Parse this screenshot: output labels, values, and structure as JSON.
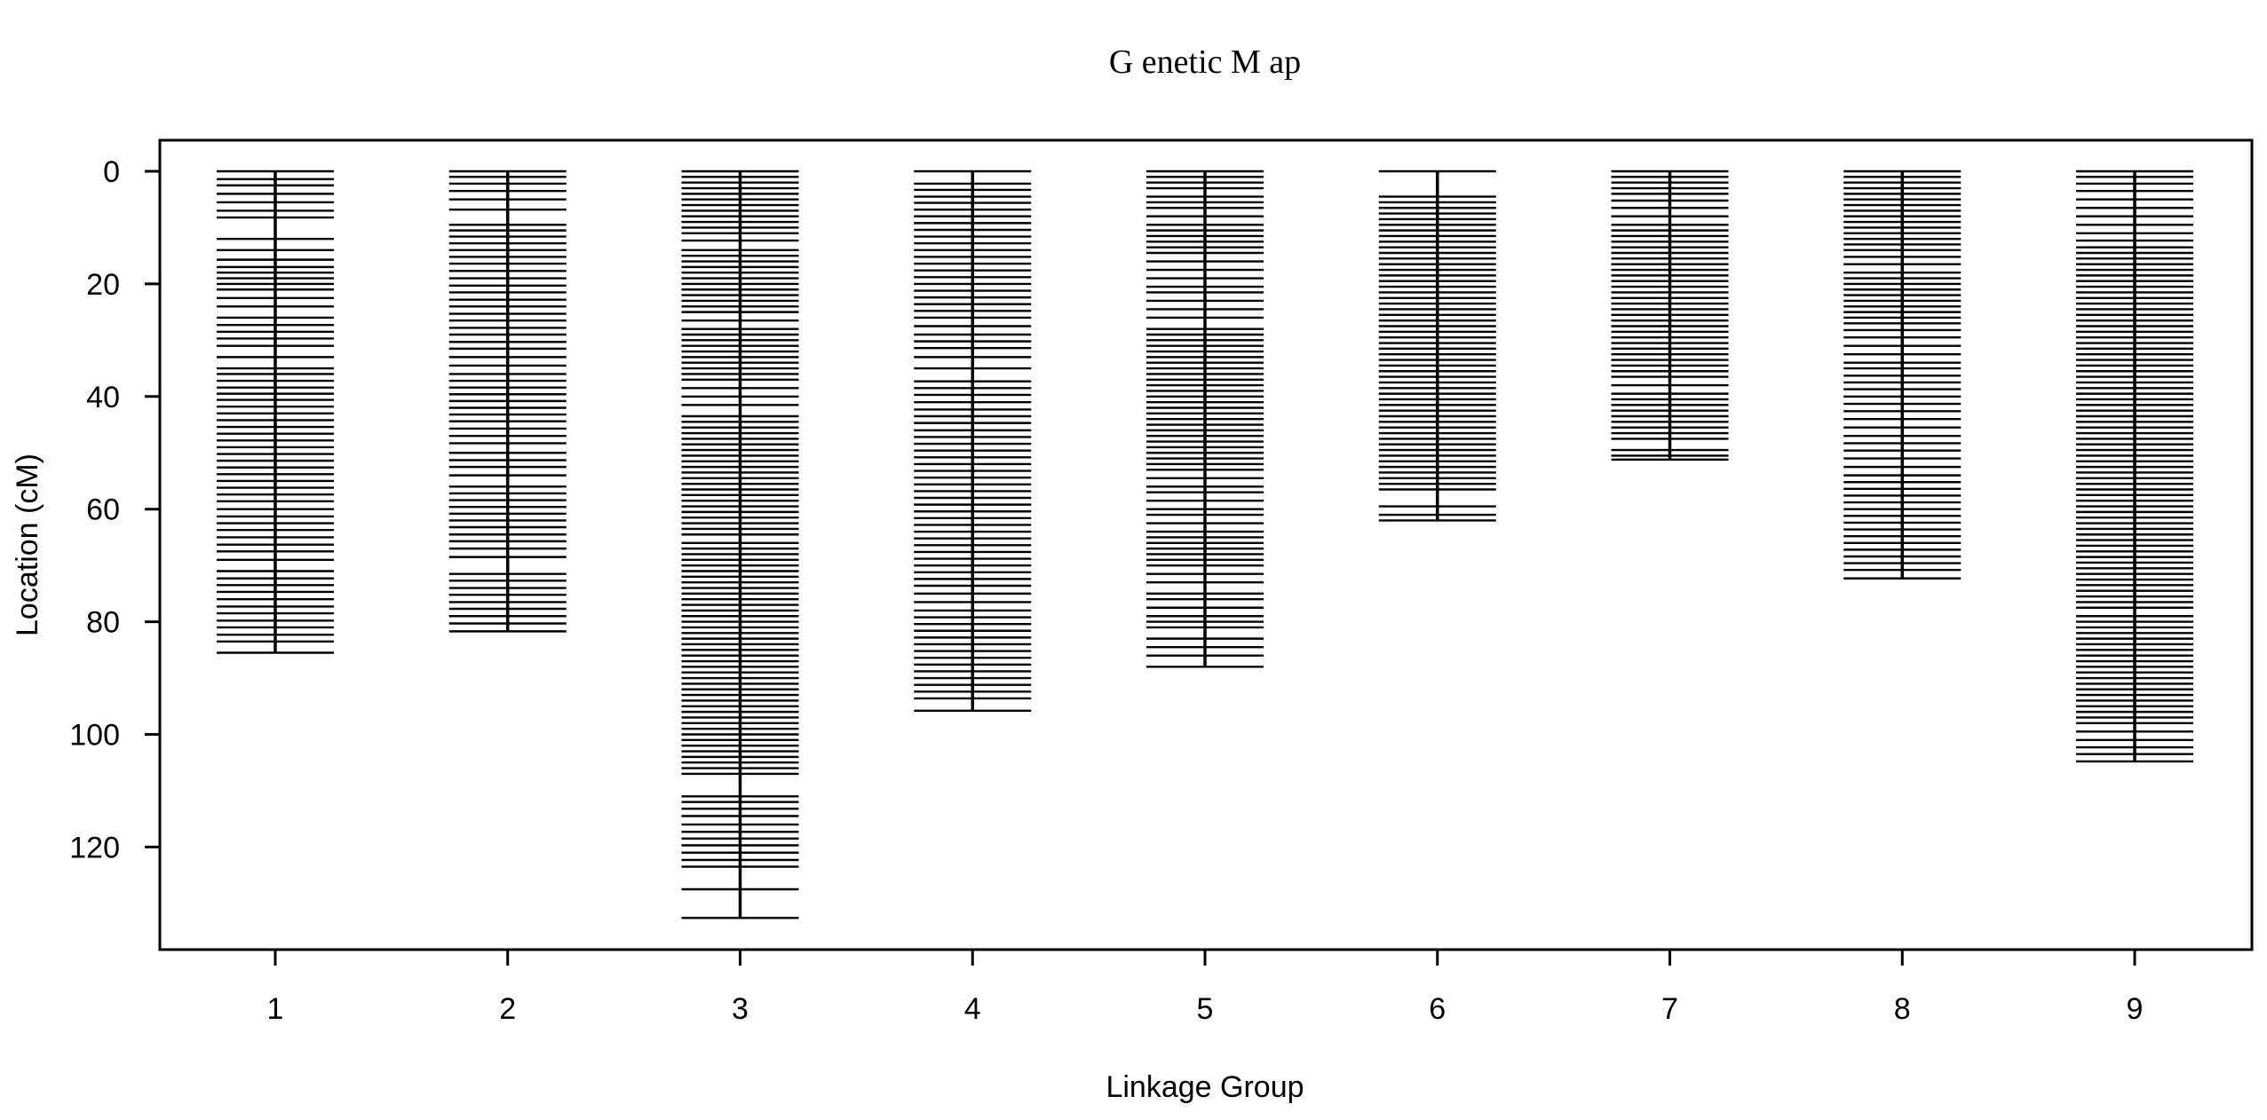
{
  "chart_data": {
    "type": "genetic-map",
    "title": "G enetic M ap",
    "xlabel": "Linkage Group",
    "ylabel": "Location (cM)",
    "ylim": [
      0,
      133
    ],
    "y_reversed": true,
    "yticks": [
      0,
      20,
      40,
      60,
      80,
      100,
      120
    ],
    "categories": [
      "1",
      "2",
      "3",
      "4",
      "5",
      "6",
      "7",
      "8",
      "9"
    ],
    "groups": [
      {
        "name": "1",
        "length": 85.5,
        "markers": [
          0,
          1.4,
          2.5,
          4,
          5.5,
          7,
          8.2,
          12,
          14,
          15.7,
          17,
          18,
          19,
          20,
          21,
          22.5,
          24,
          26,
          27.3,
          28.5,
          29.7,
          31,
          33,
          35,
          36,
          37.2,
          38.4,
          39.5,
          40.6,
          41.8,
          43,
          44.2,
          45.4,
          46.6,
          47.8,
          49,
          50.2,
          51.4,
          52.6,
          53.8,
          55,
          56.2,
          57.4,
          58.6,
          60,
          61.3,
          62.5,
          63.7,
          65,
          66.3,
          67.5,
          69,
          71,
          72.3,
          73.5,
          74.7,
          76,
          77.3,
          78.5,
          79.8,
          81,
          82.3,
          83.5,
          85.5
        ]
      },
      {
        "name": "2",
        "length": 81.7,
        "markers": [
          0,
          1,
          2.2,
          3.5,
          5,
          6.8,
          9.5,
          10.5,
          11.6,
          12.8,
          14,
          15.2,
          16.4,
          17.7,
          19,
          20.3,
          21.5,
          22.8,
          24,
          25.3,
          26.5,
          27.8,
          29,
          30.3,
          31.5,
          33,
          34.5,
          36,
          37.2,
          38.4,
          39.6,
          40.8,
          42,
          43.2,
          44.4,
          45.7,
          47,
          48.3,
          50,
          51.3,
          52.5,
          54,
          56,
          57.2,
          58.4,
          59.6,
          60.8,
          62,
          63.2,
          64.5,
          65.7,
          67,
          68.5,
          71.5,
          72.7,
          74,
          75.2,
          76.5,
          77.7,
          79,
          80.3,
          81.7
        ]
      },
      {
        "name": "3",
        "length": 132.6,
        "markers": [
          0,
          1,
          2,
          3,
          4,
          5,
          6,
          7,
          8,
          9,
          10,
          11,
          12.3,
          14,
          15,
          16,
          17,
          18,
          19,
          20,
          21,
          22,
          23,
          24,
          25,
          26.5,
          28,
          29,
          30,
          31,
          32,
          33,
          34,
          35,
          36,
          37,
          38.5,
          40,
          41.5,
          43.5,
          44.5,
          45.5,
          46.5,
          47.5,
          48.5,
          49.5,
          50.5,
          51.5,
          52.5,
          53.5,
          54.5,
          55.5,
          56.5,
          57.5,
          58.5,
          59.5,
          60.5,
          61.5,
          62.5,
          63.5,
          64.5,
          66,
          67,
          68,
          69,
          70,
          71,
          72,
          73,
          74,
          75,
          76,
          77,
          78,
          79,
          80,
          81,
          82,
          83,
          84,
          85,
          86,
          87,
          88,
          89,
          90,
          91,
          92,
          93,
          94,
          95,
          96,
          97,
          98,
          99,
          100,
          101,
          102,
          103,
          104,
          105,
          106,
          107,
          111,
          112,
          113.2,
          114.5,
          116,
          117.3,
          118.5,
          119.7,
          121,
          122.3,
          123.5,
          127.5,
          132.6
        ]
      },
      {
        "name": "4",
        "length": 95.8,
        "markers": [
          0,
          2.2,
          3.3,
          4.5,
          5.6,
          6.8,
          8,
          9.2,
          10.4,
          11.6,
          12.8,
          14,
          15.2,
          16.4,
          17.6,
          18.8,
          20,
          21.2,
          22.4,
          23.6,
          24.8,
          26,
          27.5,
          29,
          30.2,
          31.4,
          33,
          35,
          37.3,
          38.5,
          39.7,
          41,
          42.3,
          43.5,
          44.7,
          46,
          47.2,
          48.4,
          49.6,
          50.8,
          52,
          53.2,
          54.4,
          55.6,
          56.8,
          58,
          59.2,
          60.4,
          61.6,
          62.8,
          64,
          65.2,
          66.4,
          67.6,
          68.8,
          70,
          71.2,
          72.4,
          73.6,
          75,
          76.5,
          78,
          79.2,
          80.4,
          81.6,
          82.8,
          84,
          85.2,
          86.4,
          87.6,
          88.8,
          90,
          91.2,
          92.4,
          93.6,
          95.8
        ]
      },
      {
        "name": "5",
        "length": 88,
        "markers": [
          0,
          1,
          2,
          3,
          4.5,
          5.5,
          6.5,
          8,
          9.5,
          10.5,
          11.5,
          12.5,
          13.5,
          14.5,
          16,
          17.5,
          19,
          20.5,
          21.5,
          23,
          24.5,
          26,
          28,
          29,
          30,
          31,
          32,
          33,
          34,
          35,
          36,
          37,
          38,
          39,
          40,
          41,
          42,
          43,
          44,
          45,
          46,
          47,
          48,
          49,
          50,
          51,
          52,
          53,
          54.5,
          56,
          57,
          58.5,
          60,
          61,
          62.5,
          64,
          65,
          66,
          67,
          68,
          69,
          70,
          71.5,
          73,
          75,
          76,
          77.5,
          79,
          80,
          81,
          83,
          84.5,
          86,
          88
        ]
      },
      {
        "name": "6",
        "length": 62,
        "markers": [
          0,
          4.5,
          5.5,
          6.5,
          7.5,
          8.5,
          9.5,
          10.5,
          11.5,
          12.5,
          13.5,
          14.5,
          15.5,
          16.5,
          17.5,
          18.5,
          19.5,
          20.5,
          21.5,
          22.5,
          23.5,
          24.5,
          25.5,
          26.5,
          27.5,
          28.5,
          29.5,
          30.5,
          31.5,
          32.5,
          33.5,
          34.5,
          35.5,
          36.5,
          37.5,
          38.5,
          39.5,
          40.5,
          41.5,
          42.5,
          43.5,
          44.5,
          45.5,
          46.5,
          47.5,
          48.5,
          49.5,
          50.5,
          51.5,
          52.5,
          53.5,
          54.5,
          55.5,
          56.5,
          59.5,
          61,
          62
        ]
      },
      {
        "name": "7",
        "length": 51.2,
        "markers": [
          0,
          1,
          2,
          3,
          4,
          5.2,
          6.5,
          8,
          9.5,
          10.5,
          11.5,
          12.5,
          13.5,
          14.5,
          15.5,
          16.5,
          17.5,
          18.5,
          19.5,
          20.5,
          21.5,
          22.5,
          23.5,
          24.5,
          25.5,
          26.5,
          27.5,
          28.5,
          29.5,
          30.5,
          31.5,
          32.5,
          33.5,
          34.5,
          35.5,
          36.5,
          38,
          39.5,
          40.5,
          41.5,
          42.5,
          43.5,
          44.5,
          45.5,
          46.5,
          47.5,
          49.5,
          50.5,
          51.2
        ]
      },
      {
        "name": "8",
        "length": 72.3,
        "markers": [
          0,
          1,
          2,
          3,
          4,
          5,
          6,
          7,
          8,
          9,
          10,
          11,
          12,
          13,
          14,
          15.2,
          16.5,
          18,
          19,
          20,
          21,
          22,
          23,
          24,
          25,
          26,
          27,
          28.2,
          29.5,
          31,
          32.5,
          34,
          35,
          36.3,
          37.5,
          38.7,
          40,
          41.3,
          42.6,
          44,
          45.5,
          47,
          48.3,
          49.6,
          51,
          52.5,
          54,
          55.2,
          56.4,
          57.6,
          58.8,
          60,
          61.2,
          62.4,
          63.6,
          64.8,
          66,
          67.2,
          68.4,
          69.6,
          70.8,
          72.3
        ]
      },
      {
        "name": "9",
        "length": 104.8,
        "markers": [
          0,
          1,
          2.2,
          3.5,
          5,
          6.5,
          8,
          9.5,
          11,
          12.3,
          13.5,
          14.5,
          15.5,
          16.5,
          17.5,
          18.5,
          19.5,
          20.5,
          21.5,
          22.5,
          23.5,
          24.5,
          25.5,
          26.5,
          27.5,
          28.5,
          29.5,
          30.5,
          31.5,
          32.5,
          33.5,
          34.5,
          35.5,
          36.5,
          37.5,
          38.5,
          39.5,
          40.5,
          41.5,
          42.5,
          43.5,
          44.5,
          45.5,
          46.5,
          47.5,
          48.5,
          49.5,
          50.5,
          51.5,
          52.5,
          53.5,
          54.5,
          55.5,
          56.5,
          57.5,
          58.5,
          59.5,
          60.5,
          61.5,
          62.5,
          63.5,
          64.5,
          65.5,
          66.5,
          67.5,
          68.5,
          69.5,
          70.5,
          71.5,
          72.5,
          73.5,
          74.5,
          75.5,
          76.5,
          77.5,
          79,
          80,
          81,
          82,
          83,
          84,
          85,
          86,
          87,
          88,
          89,
          90,
          91,
          92,
          93,
          94,
          95,
          96,
          97,
          98,
          99.5,
          101,
          102.3,
          103.5,
          104.8
        ]
      }
    ]
  }
}
